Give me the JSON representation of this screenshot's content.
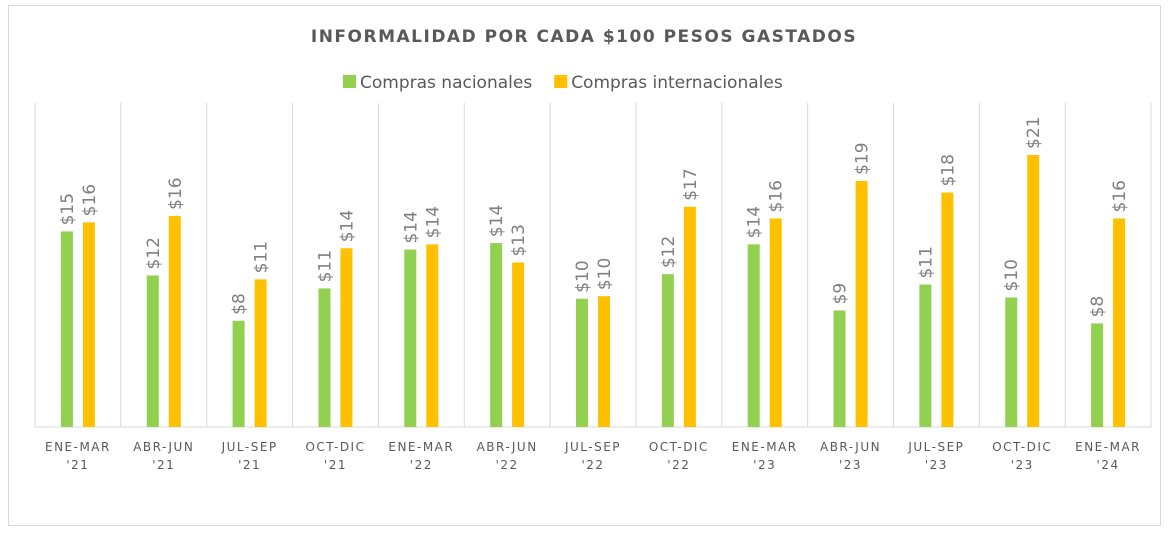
{
  "chart_data": {
    "type": "bar",
    "title": "INFORMALIDAD POR CADA $100 PESOS GASTADOS",
    "categories": [
      "ENE-MAR '21",
      "ABR-JUN '21",
      "JUL-SEP '21",
      "OCT-DIC '21",
      "ENE-MAR '22",
      "ABR-JUN '22",
      "JUL-SEP '22",
      "OCT-DIC '22",
      "ENE-MAR '23",
      "ABR-JUN '23",
      "JUL-SEP '23",
      "OCT-DIC '23",
      "ENE-MAR '24"
    ],
    "series": [
      {
        "name": "Compras nacionales",
        "color": "#92d050",
        "values": [
          15.1,
          11.7,
          8.2,
          10.7,
          13.7,
          14.2,
          9.9,
          11.8,
          14.1,
          9.0,
          11.0,
          10.0,
          8.0
        ],
        "value_labels": [
          "$15",
          "$12",
          "$8",
          "$11",
          "$14",
          "$14",
          "$10",
          "$12",
          "$14",
          "$9",
          "$11",
          "$10",
          "$8"
        ]
      },
      {
        "name": "Compras internacionales",
        "color": "#ffc000",
        "values": [
          15.8,
          16.3,
          11.4,
          13.8,
          14.1,
          12.7,
          10.1,
          17.0,
          16.1,
          19.0,
          18.1,
          21.0,
          16.1
        ],
        "value_labels": [
          "$16",
          "$16",
          "$11",
          "$14",
          "$14",
          "$13",
          "$10",
          "$17",
          "$16",
          "$19",
          "$18",
          "$21",
          "$16"
        ]
      }
    ],
    "legend": "top"
  }
}
